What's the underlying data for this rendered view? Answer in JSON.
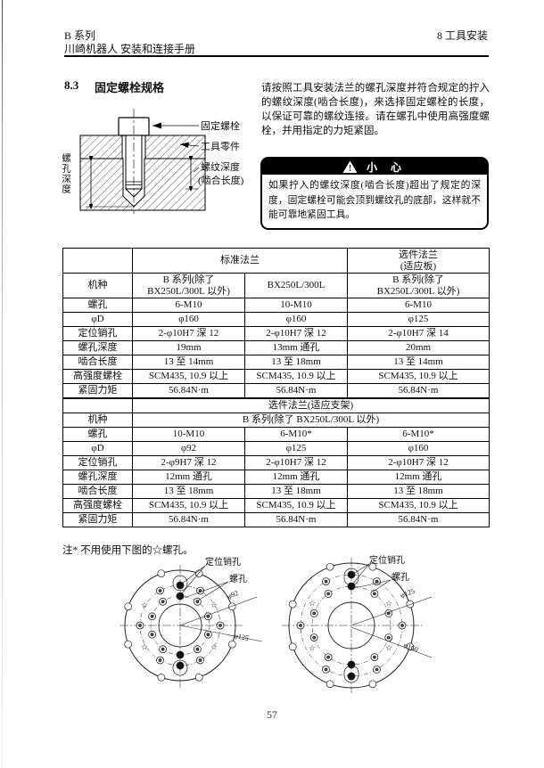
{
  "header": {
    "series": "B 系列",
    "manual": "川崎机器人 安装和连接手册",
    "chapter": "8   工具安装"
  },
  "section": {
    "number": "8.3",
    "title": "固定螺栓规格"
  },
  "intro": "请按照工具安装法兰的螺孔深度并符合规定的拧入的螺纹深度(啮合长度)，来选择固定螺栓的长度，以保证可靠的螺纹连接。请在螺孔中使用高强度螺栓，并用指定的力矩紧固。",
  "caution": {
    "title": "小 心",
    "body": "如果拧入的螺纹深度(啮合长度)超出了规定的深度，固定螺栓可能会顶到螺纹孔的底部，这样就不能可靠地紧固工具。"
  },
  "bolt_diagram": {
    "fixing_bolt": "固定螺栓",
    "tool_part": "工具零件",
    "thread_depth": "螺纹深度",
    "engagement": "(啮合长度)",
    "hole_depth": "螺孔深度"
  },
  "table1": {
    "top_standard": "标准法兰",
    "top_option": "选件法兰\n(适应板)",
    "machine_label": "机种",
    "machines": [
      "B 系列(除了\nBX250L/300L 以外)",
      "BX250L/300L",
      "B 系列(除了\nBX250L/300L 以外)"
    ],
    "rows": [
      [
        "螺孔",
        "6-M10",
        "10-M10",
        "6-M10"
      ],
      [
        "φD",
        "φ160",
        "φ160",
        "φ125"
      ],
      [
        "定位销孔",
        "2-φ10H7 深 12",
        "2-φ10H7 深 12",
        "2-φ10H7 深 14"
      ],
      [
        "螺孔深度",
        "19mm",
        "13mm 通孔",
        "20mm"
      ],
      [
        "啮合长度",
        "13 至 14mm",
        "13 至 18mm",
        "13 至 14mm"
      ],
      [
        "高强度螺栓",
        "SCM435, 10.9 以上",
        "SCM435, 10.9 以上",
        "SCM435, 10.9 以上"
      ],
      [
        "紧固力矩",
        "56.84N·m",
        "56.84N·m",
        "56.84N·m"
      ]
    ]
  },
  "table2": {
    "top": "选件法兰(适应支架)",
    "machine_label": "机种",
    "machine": "B 系列(除了 BX250L/300L 以外)",
    "rows": [
      [
        "螺孔",
        "10-M10",
        "6-M10*",
        "6-M10*"
      ],
      [
        "φD",
        "φ92",
        "φ125",
        "φ160"
      ],
      [
        "定位销孔",
        "2-φ9H7 深 12",
        "2-φ10H7 深 12",
        "2-φ10H7 深 12"
      ],
      [
        "螺孔深度",
        "12mm 通孔",
        "12mm 通孔",
        "12mm 通孔"
      ],
      [
        "啮合长度",
        "13 至 18mm",
        "13 至 18mm",
        "13 至 18mm"
      ],
      [
        "高强度螺栓",
        "SCM435, 10.9 以上",
        "SCM435, 10.9 以上",
        "SCM435, 10.9 以上"
      ],
      [
        "紧固力矩",
        "56.84N·m",
        "56.84N·m",
        "56.84N·m"
      ]
    ]
  },
  "note": "注*  不用使用下图的☆螺孔。",
  "flange_left": {
    "pin_label": "定位销孔",
    "screw_label": "螺孔",
    "dim1": "φ92",
    "dim2": "φ125"
  },
  "flange_right": {
    "pin_label": "定位销孔",
    "screw_label": "螺孔",
    "dim1": "φ125",
    "dim2": "φ160"
  },
  "page_number": "57"
}
